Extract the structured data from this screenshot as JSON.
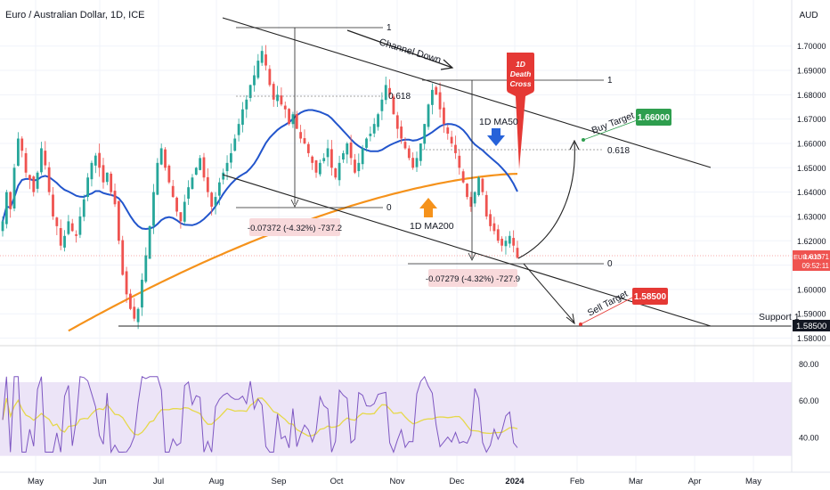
{
  "header": {
    "title": "Euro / Australian Dollar, 1D, ICE",
    "currency": "AUD"
  },
  "chart_data": {
    "type": "candlestick",
    "symbol": "EURAUD",
    "last_price": "1.61371",
    "countdown": "09:52:11",
    "price_axis": {
      "ylim": [
        1.578,
        1.716
      ],
      "ticks": [
        "1.70000",
        "1.69000",
        "1.68000",
        "1.67000",
        "1.66000",
        "1.65000",
        "1.64000",
        "1.63000",
        "1.62000",
        "1.61000",
        "1.60000",
        "1.59000",
        "1.58000"
      ]
    },
    "x_ticks": [
      "May",
      "Jun",
      "Jul",
      "Aug",
      "Sep",
      "Oct",
      "Nov",
      "Dec",
      "2024",
      "Feb",
      "Mar",
      "Apr",
      "May"
    ],
    "candles_close_approx": [
      1.628,
      1.64,
      1.633,
      1.65,
      1.662,
      1.657,
      1.648,
      1.645,
      1.64,
      1.648,
      1.658,
      1.651,
      1.64,
      1.63,
      1.626,
      1.618,
      1.622,
      1.628,
      1.624,
      1.622,
      1.63,
      1.637,
      1.646,
      1.652,
      1.655,
      1.65,
      1.644,
      1.648,
      1.64,
      1.635,
      1.62,
      1.606,
      1.598,
      1.592,
      1.588,
      1.592,
      1.604,
      1.614,
      1.626,
      1.64,
      1.652,
      1.658,
      1.65,
      1.644,
      1.638,
      1.632,
      1.628,
      1.636,
      1.642,
      1.646,
      1.65,
      1.654,
      1.646,
      1.64,
      1.634,
      1.638,
      1.644,
      1.648,
      1.652,
      1.656,
      1.662,
      1.668,
      1.674,
      1.678,
      1.684,
      1.688,
      1.694,
      1.698,
      1.692,
      1.684,
      1.678,
      1.68,
      1.676,
      1.674,
      1.668,
      1.672,
      1.666,
      1.662,
      1.66,
      1.656,
      1.652,
      1.648,
      1.652,
      1.654,
      1.658,
      1.65,
      1.646,
      1.652,
      1.656,
      1.66,
      1.654,
      1.648,
      1.652,
      1.658,
      1.662,
      1.664,
      1.668,
      1.672,
      1.678,
      1.684,
      1.68,
      1.672,
      1.666,
      1.662,
      1.658,
      1.654,
      1.65,
      1.654,
      1.66,
      1.668,
      1.676,
      1.682,
      1.68,
      1.674,
      1.668,
      1.664,
      1.66,
      1.656,
      1.65,
      1.644,
      1.638,
      1.634,
      1.64,
      1.646,
      1.64,
      1.63,
      1.626,
      1.624,
      1.62,
      1.618,
      1.62,
      1.622,
      1.618,
      1.613
    ],
    "moving_averages": [
      {
        "name": "1D MA50",
        "color": "#2255cc"
      },
      {
        "name": "1D MA200",
        "color": "#f5921b"
      }
    ],
    "annotations": {
      "channel_label": "Channel Down",
      "death_cross": [
        "1D",
        "Death",
        "Cross"
      ],
      "ma50_label": "1D MA50",
      "ma200_label": "1D MA200",
      "buy_target_label": "Buy Target",
      "buy_target_value": "1.66000",
      "sell_target_label": "Sell Target",
      "sell_target_value": "1.58500",
      "support_label": "Support 1",
      "support_value": "1.58500",
      "fib_left": {
        "level_1": "1",
        "level_618": "0.618",
        "level_0": "0",
        "measure": "-0.07372 (-4.32%) -737.2"
      },
      "fib_right": {
        "level_1": "1",
        "level_618": "0.618",
        "level_0": "0",
        "measure": "-0.07279 (-4.32%) -727.9"
      }
    },
    "rsi": {
      "ylim": [
        25,
        85
      ],
      "band": [
        30,
        70
      ],
      "ticks": [
        "80.00",
        "60.00",
        "40.00"
      ]
    }
  },
  "colors": {
    "bull": "#26a69a",
    "bear": "#ef5350",
    "ma50": "#2255cc",
    "ma200": "#f5921b",
    "rsi": "#7e57c2",
    "rsi_ma": "#e6d84a",
    "rsi_band": "#ece4f7",
    "buy": "#2e9e4e",
    "sell": "#e53935"
  }
}
